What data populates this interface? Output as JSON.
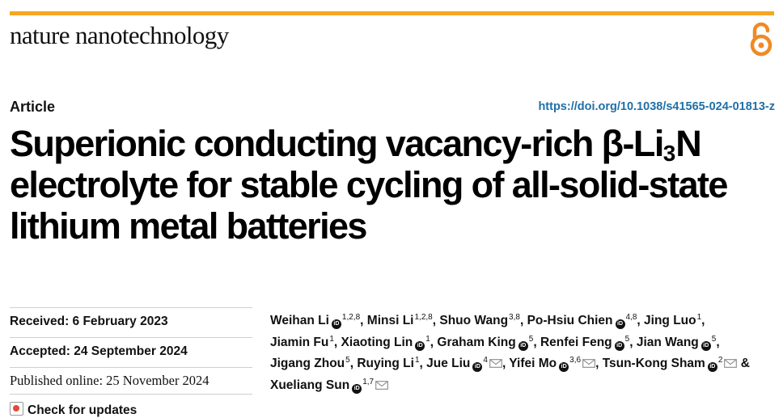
{
  "header": {
    "journal_name": "nature nanotechnology",
    "open_access_icon": "open-access-lock-icon",
    "accent_color": "#f5a623",
    "oa_color": "#f08a24"
  },
  "article": {
    "type": "Article",
    "doi": "https://doi.org/10.1038/s41565-024-01813-z",
    "doi_color": "#1f6fa8",
    "title_line1_pre": "Superionic conducting vacancy-rich β-Li",
    "title_line1_sub": "3",
    "title_line1_post": "N",
    "title_line2": "electrolyte for stable cycling of all-solid-state",
    "title_line3": "lithium metal batteries"
  },
  "dates": {
    "received": "Received: 6 February 2023",
    "accepted": "Accepted: 24 September 2024",
    "published": "Published online: 25 November 2024",
    "check_updates": "Check for updates"
  },
  "authors": [
    {
      "name": "Weihan Li",
      "orcid": true,
      "aff": "1,2,8",
      "email": false
    },
    {
      "name": "Minsi Li",
      "orcid": false,
      "aff": "1,2,8",
      "email": false
    },
    {
      "name": "Shuo Wang",
      "orcid": false,
      "aff": "3,8",
      "email": false
    },
    {
      "name": "Po-Hsiu Chien",
      "orcid": true,
      "aff": "4,8",
      "email": false
    },
    {
      "name": "Jing Luo",
      "orcid": false,
      "aff": "1",
      "email": false
    },
    {
      "name": "Jiamin Fu",
      "orcid": false,
      "aff": "1",
      "email": false
    },
    {
      "name": "Xiaoting Lin",
      "orcid": true,
      "aff": "1",
      "email": false
    },
    {
      "name": "Graham King",
      "orcid": true,
      "aff": "5",
      "email": false
    },
    {
      "name": "Renfei Feng",
      "orcid": true,
      "aff": "5",
      "email": false
    },
    {
      "name": "Jian Wang",
      "orcid": true,
      "aff": "5",
      "email": false
    },
    {
      "name": "Jigang Zhou",
      "orcid": false,
      "aff": "5",
      "email": false
    },
    {
      "name": "Ruying Li",
      "orcid": false,
      "aff": "1",
      "email": false
    },
    {
      "name": "Jue Liu",
      "orcid": true,
      "aff": "4",
      "email": true
    },
    {
      "name": "Yifei Mo",
      "orcid": true,
      "aff": "3,6",
      "email": true
    },
    {
      "name": "Tsun-Kong Sham",
      "orcid": true,
      "aff": "2",
      "email": true
    },
    {
      "name": "Xueliang Sun",
      "orcid": true,
      "aff": "1,7",
      "email": true
    }
  ],
  "author_lines": [
    [
      0,
      1,
      2,
      3,
      4
    ],
    [
      5,
      6,
      7,
      8,
      9
    ],
    [
      10,
      11,
      12,
      13,
      14
    ],
    [
      15
    ]
  ],
  "orcid_label": "iD"
}
